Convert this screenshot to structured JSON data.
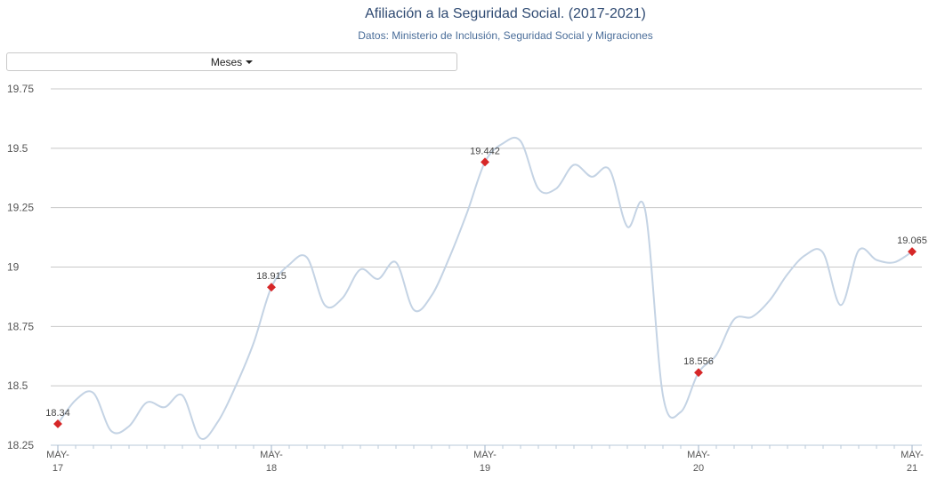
{
  "header": {
    "title": "Afiliación a la Seguridad Social. (2017-2021)",
    "subtitle": "Datos: Ministerio de Inclusión, Seguridad Social y Migraciones"
  },
  "controls": {
    "period_label": "Meses"
  },
  "chart_data": {
    "type": "line",
    "title": "Afiliación a la Seguridad Social. (2017-2021)",
    "subtitle": "Datos: Ministerio de Inclusión, Seguridad Social y Migraciones",
    "xlabel": "",
    "ylabel": "",
    "ylim": [
      18.25,
      19.75
    ],
    "yticks": [
      18.25,
      18.5,
      18.75,
      19,
      19.25,
      19.5,
      19.75
    ],
    "ytick_labels": [
      "18.25",
      "18.5",
      "18.75",
      "19",
      "19.25",
      "19.5",
      "19.75"
    ],
    "xticks": [
      {
        "index": 0,
        "label_line1": "MAY-",
        "label_line2": "17"
      },
      {
        "index": 12,
        "label_line1": "MAY-",
        "label_line2": "18"
      },
      {
        "index": 24,
        "label_line1": "MAY-",
        "label_line2": "19"
      },
      {
        "index": 36,
        "label_line1": "MAY-",
        "label_line2": "20"
      },
      {
        "index": 48,
        "label_line1": "MAY-",
        "label_line2": "21"
      }
    ],
    "x": [
      "2017-05",
      "2017-06",
      "2017-07",
      "2017-08",
      "2017-09",
      "2017-10",
      "2017-11",
      "2017-12",
      "2018-01",
      "2018-02",
      "2018-03",
      "2018-04",
      "2018-05",
      "2018-06",
      "2018-07",
      "2018-08",
      "2018-09",
      "2018-10",
      "2018-11",
      "2018-12",
      "2019-01",
      "2019-02",
      "2019-03",
      "2019-04",
      "2019-05",
      "2019-06",
      "2019-07",
      "2019-08",
      "2019-09",
      "2019-10",
      "2019-11",
      "2019-12",
      "2020-01",
      "2020-02",
      "2020-03",
      "2020-04",
      "2020-05",
      "2020-06",
      "2020-07",
      "2020-08",
      "2020-09",
      "2020-10",
      "2020-11",
      "2020-12",
      "2021-01",
      "2021-02",
      "2021-03",
      "2021-04",
      "2021-05"
    ],
    "series": [
      {
        "color": "#c4d3e4",
        "values": [
          18.34,
          18.44,
          18.47,
          18.31,
          18.33,
          18.43,
          18.41,
          18.46,
          18.28,
          18.35,
          18.5,
          18.68,
          18.915,
          19.01,
          19.04,
          18.84,
          18.87,
          18.99,
          18.95,
          19.02,
          18.82,
          18.88,
          19.04,
          19.23,
          19.442,
          19.52,
          19.53,
          19.33,
          19.33,
          19.43,
          19.38,
          19.41,
          19.17,
          19.24,
          18.46,
          18.39,
          18.556,
          18.63,
          18.78,
          18.79,
          18.86,
          18.97,
          19.05,
          19.06,
          18.84,
          19.07,
          19.03,
          19.02,
          19.065
        ]
      }
    ],
    "annotations": [
      {
        "index": 0,
        "label": "18.34"
      },
      {
        "index": 12,
        "label": "18.915"
      },
      {
        "index": 24,
        "label": "19.442"
      },
      {
        "index": 36,
        "label": "18.556"
      },
      {
        "index": 48,
        "label": "19.065"
      }
    ],
    "marker_color": "#d62728",
    "grid": true,
    "legend": "none"
  }
}
